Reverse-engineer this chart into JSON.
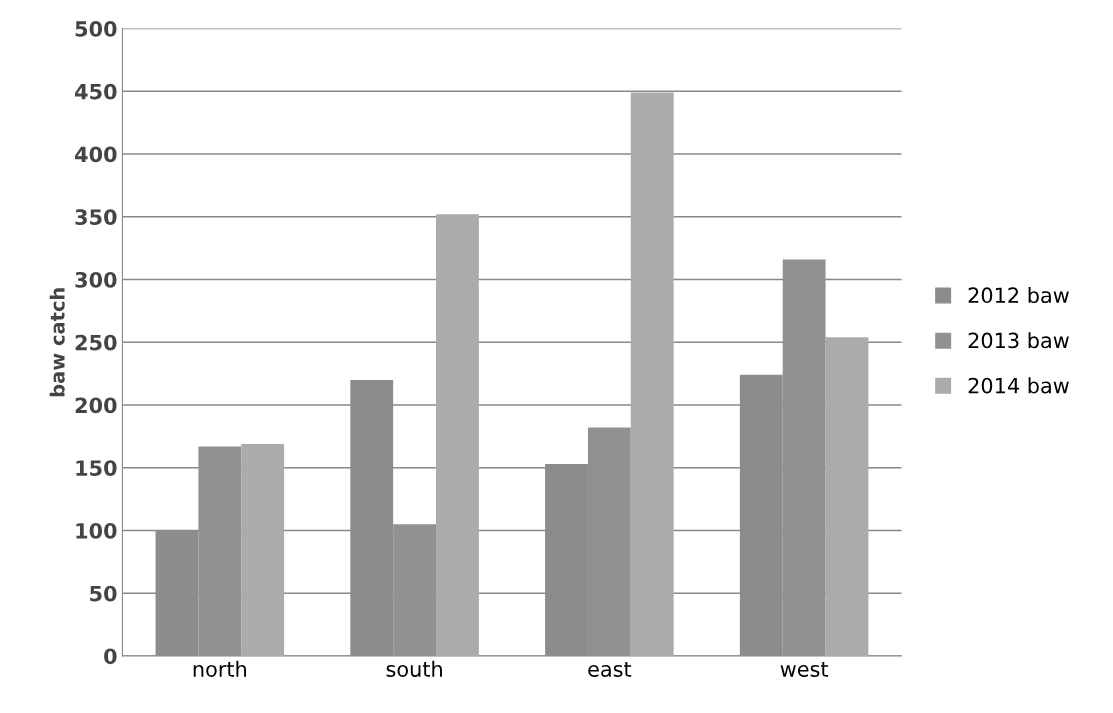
{
  "chart_data": {
    "type": "bar",
    "ylabel": "baw catch",
    "categories": [
      "north",
      "south",
      "east",
      "west"
    ],
    "series": [
      {
        "name": "2012 baw",
        "color": "#8c8c8c",
        "values": [
          100,
          220,
          153,
          224
        ]
      },
      {
        "name": "2013 baw",
        "color": "#919191",
        "values": [
          167,
          105,
          182,
          316
        ]
      },
      {
        "name": "2014 baw",
        "color": "#ababab",
        "values": [
          169,
          352,
          449,
          254
        ]
      }
    ],
    "ylim": [
      0,
      500
    ],
    "yticks": [
      0,
      50,
      100,
      150,
      200,
      250,
      300,
      350,
      400,
      450,
      500
    ],
    "grid": "y",
    "legend": "right"
  }
}
